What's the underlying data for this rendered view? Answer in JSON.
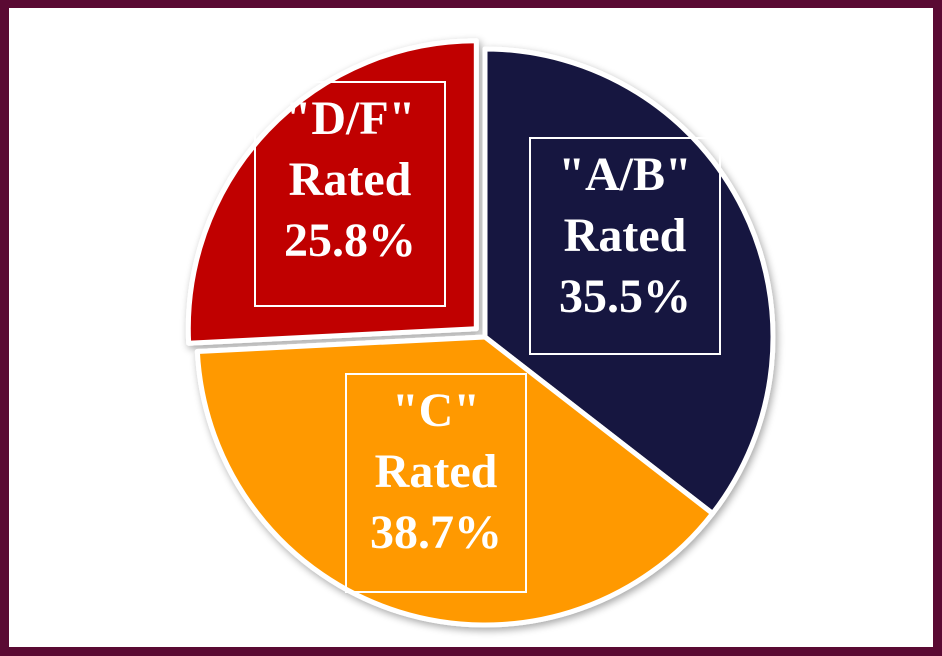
{
  "chart_data": {
    "type": "pie",
    "slices": [
      {
        "label_lines": [
          "\"A/B\"",
          "Rated",
          "35.5%"
        ],
        "category": "A/B",
        "value": 35.5,
        "color": "#16163f"
      },
      {
        "label_lines": [
          "\"C\"",
          "Rated",
          "38.7%"
        ],
        "category": "C",
        "value": 38.7,
        "color": "#ff9900"
      },
      {
        "label_lines": [
          "\"D/F\"",
          "Rated",
          "25.8%"
        ],
        "category": "D/F",
        "value": 25.8,
        "color": "#c00000"
      }
    ],
    "start_angle_deg": 0,
    "direction": "clockwise",
    "exploded_slice": "D/F",
    "frame_color": "#5a0a33"
  }
}
